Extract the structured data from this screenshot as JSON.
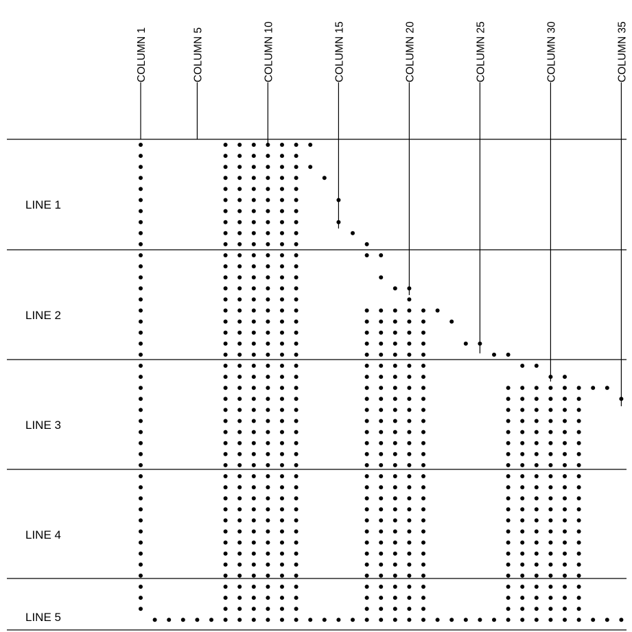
{
  "diagram": {
    "type": "dot-matrix-grid",
    "columns": [
      {
        "number": 1,
        "label": "COLUMN 1"
      },
      {
        "number": 5,
        "label": "COLUMN 5"
      },
      {
        "number": 10,
        "label": "COLUMN 10"
      },
      {
        "number": 15,
        "label": "COLUMN 15"
      },
      {
        "number": 20,
        "label": "COLUMN 20"
      },
      {
        "number": 25,
        "label": "COLUMN 25"
      },
      {
        "number": 30,
        "label": "COLUMN 30"
      },
      {
        "number": 35,
        "label": "COLUMN 35"
      }
    ],
    "lines": [
      {
        "number": 1,
        "label": "LINE 1"
      },
      {
        "number": 2,
        "label": "LINE 2"
      },
      {
        "number": 3,
        "label": "LINE 3"
      },
      {
        "number": 4,
        "label": "LINE 4"
      },
      {
        "number": 5,
        "label": "LINE 5"
      }
    ],
    "colors": {
      "dot": "#000000",
      "rule": "#000000",
      "background": "#ffffff"
    }
  }
}
